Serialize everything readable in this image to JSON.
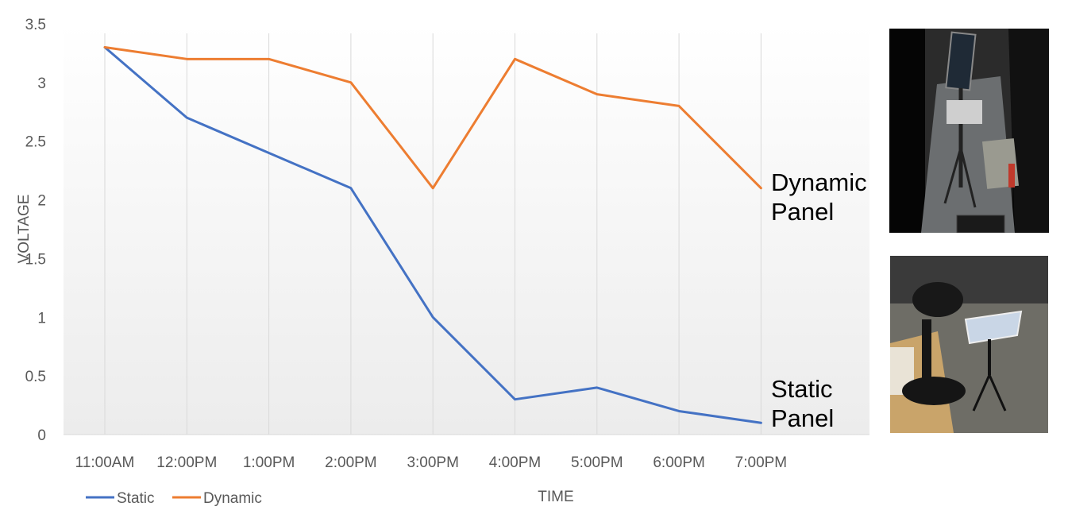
{
  "chart_data": {
    "type": "line",
    "categories": [
      "11:00AM",
      "12:00PM",
      "1:00PM",
      "2:00PM",
      "3:00PM",
      "4:00PM",
      "5:00PM",
      "6:00PM",
      "7:00PM"
    ],
    "series": [
      {
        "name": "Static",
        "color": "#4472c4",
        "values": [
          3.3,
          2.7,
          2.4,
          2.1,
          1.0,
          0.3,
          0.4,
          0.2,
          0.1
        ]
      },
      {
        "name": "Dynamic",
        "color": "#ed7d31",
        "values": [
          3.3,
          3.2,
          3.2,
          3.0,
          2.1,
          3.2,
          2.9,
          2.8,
          2.1
        ]
      }
    ],
    "ylim": [
      0,
      3.5
    ],
    "yticks": [
      0,
      0.5,
      1,
      1.5,
      2,
      2.5,
      3,
      3.5
    ],
    "ytick_labels": [
      "0",
      "0.5",
      "1",
      "1.5",
      "2",
      "2.5",
      "3",
      "3.5"
    ],
    "xlabel": "TIME",
    "ylabel": "VOLTAGE",
    "grid": "vertical",
    "legend": "bottom-left",
    "annotations": [
      {
        "series": "Dynamic",
        "lines": [
          "Dynamic",
          "Panel"
        ]
      },
      {
        "series": "Static",
        "lines": [
          "Static",
          "Panel"
        ]
      }
    ]
  },
  "photos": {
    "top": "dynamic-panel-photo",
    "bottom": "static-panel-photo"
  }
}
